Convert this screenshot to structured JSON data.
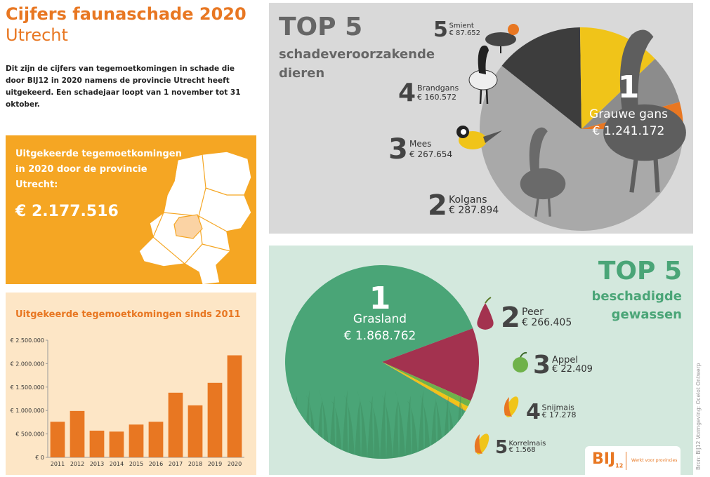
{
  "header": {
    "title_line1": "Cijfers faunaschade 2020",
    "title_line2": "Utrecht",
    "intro": "Dit zijn de cijfers van tegemoetkomingen in schade die door BIJ12 in 2020 namens de provincie Utrecht heeft uitgekeerd. Een schadejaar loopt van 1 november tot 31 oktober."
  },
  "summary": {
    "text": "Uitgekeerde tegemoetkomingen in 2020 door de provincie Utrecht:",
    "total": "€ 2.177.516"
  },
  "colors": {
    "orange": "#e87722",
    "orange_panel": "#f5a623",
    "light_orange": "#fde6c6",
    "grey_panel": "#d9d9d9",
    "green": "#4aa577",
    "green_panel": "#d3e8dd",
    "crimson": "#a3324f",
    "yellow": "#f0c419"
  },
  "animals": {
    "heading": "TOP 5",
    "subtitle": "schadeveroorzakende dieren",
    "items": [
      {
        "rank": "1",
        "name": "Grauwe gans",
        "amount": "€ 1.241.172",
        "icon": "greylag-goose-icon"
      },
      {
        "rank": "2",
        "name": "Kolgans",
        "amount": "€ 287.894",
        "icon": "white-fronted-goose-icon"
      },
      {
        "rank": "3",
        "name": "Mees",
        "amount": "€ 267.654",
        "icon": "great-tit-icon"
      },
      {
        "rank": "4",
        "name": "Brandgans",
        "amount": "€ 160.572",
        "icon": "barnacle-goose-icon"
      },
      {
        "rank": "5",
        "name": "Smient",
        "amount": "€ 87.652",
        "icon": "wigeon-icon"
      }
    ]
  },
  "crops": {
    "heading": "TOP 5",
    "subtitle_line1": "beschadigde",
    "subtitle_line2": "gewassen",
    "items": [
      {
        "rank": "1",
        "name": "Grasland",
        "amount": "€ 1.868.762",
        "icon": "grass-icon"
      },
      {
        "rank": "2",
        "name": "Peer",
        "amount": "€ 266.405",
        "icon": "pear-icon"
      },
      {
        "rank": "3",
        "name": "Appel",
        "amount": "€ 22.409",
        "icon": "apple-icon"
      },
      {
        "rank": "4",
        "name": "Snijmais",
        "amount": "€ 17.278",
        "icon": "corn-icon"
      },
      {
        "rank": "5",
        "name": "Korrelmais",
        "amount": "€ 1.568",
        "icon": "corn-icon"
      }
    ]
  },
  "chart_data": [
    {
      "type": "bar",
      "title": "Uitgekeerde tegemoetkomingen sinds 2011",
      "categories": [
        "2011",
        "2012",
        "2013",
        "2014",
        "2015",
        "2016",
        "2017",
        "2018",
        "2019",
        "2020"
      ],
      "values": [
        760000,
        990000,
        570000,
        550000,
        700000,
        760000,
        1380000,
        1110000,
        1590000,
        2177516
      ],
      "ylim": [
        0,
        2500000
      ],
      "yticks": [
        0,
        500000,
        1000000,
        1500000,
        2000000,
        2500000
      ],
      "ytick_labels": [
        "€ 0",
        "€ 500.000",
        "€ 1.000.000",
        "€ 1.500.000",
        "€ 2.000.000",
        "€ 2.500.000"
      ],
      "grid": false,
      "color": "#e87722"
    },
    {
      "type": "pie",
      "title": "TOP 5 schadeveroorzakende dieren",
      "labels": [
        "Grauwe gans",
        "Kolgans",
        "Mees",
        "Brandgans",
        "Smient"
      ],
      "values": [
        1241172,
        287894,
        267654,
        160572,
        87652
      ],
      "colors": [
        "#a9a9a9",
        "#3d3d3d",
        "#f0c419",
        "#8c8c8c",
        "#e87722"
      ]
    },
    {
      "type": "pie",
      "title": "TOP 5 beschadigde gewassen",
      "labels": [
        "Grasland",
        "Peer",
        "Appel",
        "Snijmais",
        "Korrelmais"
      ],
      "values": [
        1868762,
        266405,
        22409,
        17278,
        1568
      ],
      "colors": [
        "#4aa577",
        "#a3324f",
        "#6fb24a",
        "#f0c419",
        "#e87722"
      ]
    }
  ],
  "footer": {
    "credit": "Bron: BIJ12   Vormgeving: Ocelot Ontwerp",
    "logo_mark": "BIJ",
    "logo_sub": "12",
    "logo_tagline": "Werkt voor provincies"
  }
}
